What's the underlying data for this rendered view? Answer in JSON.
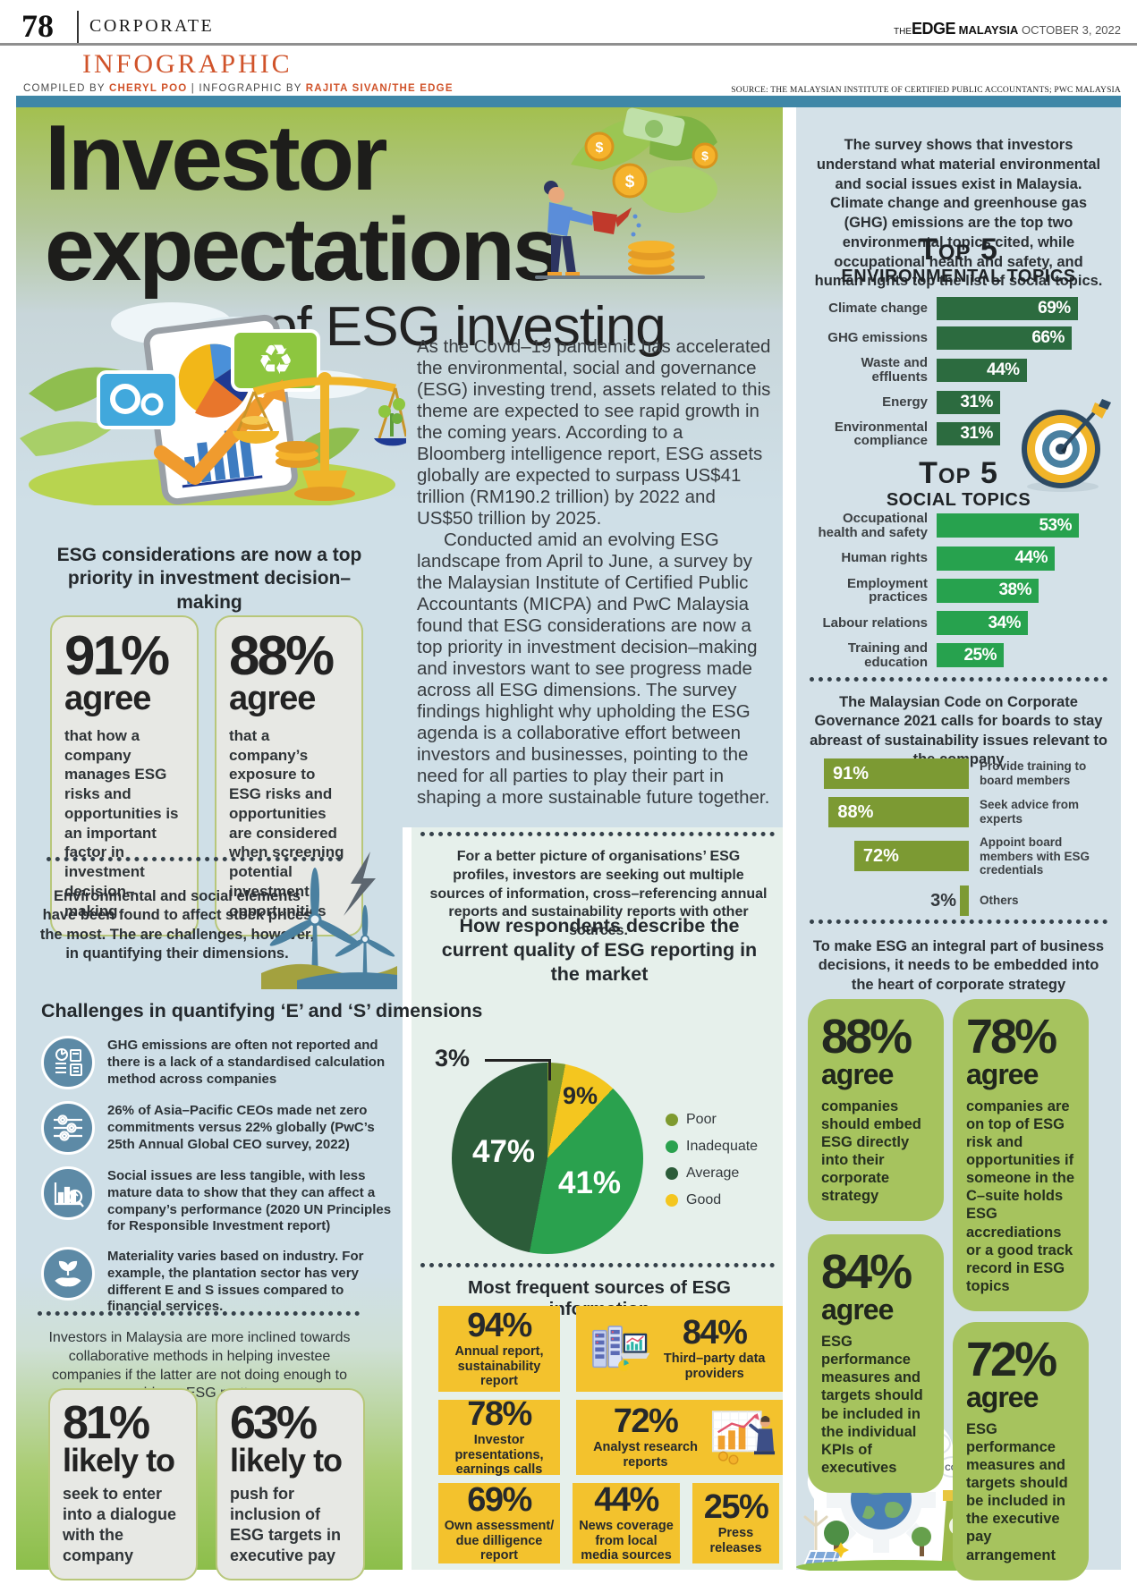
{
  "header": {
    "page_number": "78",
    "section": "CORPORATE",
    "brand": {
      "the": "THE",
      "edge": "EDGE",
      "malaysia": "MALAYSIA",
      "date": "OCTOBER 3, 2022"
    },
    "kicker": "INFOGRAPHIC",
    "byline": {
      "compiled_label": "COMPILED BY ",
      "compiled_name": "CHERYL POO",
      "divider": " | ",
      "infographic_label": "INFOGRAPHIC BY ",
      "infographic_name": "RAJITA SIVAN/THE EDGE"
    },
    "source": "SOURCE: THE MALAYSIAN INSTITUTE OF CERTIFIED PUBLIC ACCOUNTANTS; PWC MALAYSIA"
  },
  "hero": {
    "line1": "Investor",
    "line2": "expectations",
    "line3": "of ESG investing"
  },
  "left": {
    "priority_heading": "ESG considerations are now a top priority in investment decision–making",
    "stat1": {
      "value": "91%",
      "word": "agree",
      "desc": "that how a company manages ESG risks and opportunities is an important factor in investment decision–making"
    },
    "stat2": {
      "value": "88%",
      "word": "agree",
      "desc": "that a company’s exposure to ESG risks and opportunities are considered when screening potential investment opportunities"
    },
    "env_note": "Environmental and social elements have been found to affect stock prices the most. The are challenges, however, in quantifying their dimensions.",
    "challenges_heading": "Challenges in quantifying ‘E’ and ‘S’ dimensions",
    "challenges": [
      {
        "icon": "report-pie-calculator-icon",
        "text": "GHG emissions are often not reported and there is a lack of a standardised calculation method across companies"
      },
      {
        "icon": "settings-gears-icon",
        "text": "26% of Asia–Pacific CEOs made net zero commitments versus 22% globally (PwC’s 25th Annual Global CEO survey, 2022)"
      },
      {
        "icon": "chart-magnifier-icon",
        "text": "Social issues are less tangible, with less mature data to show that they can affect a company’s performance (2020 UN Principles for Responsible Investment report)"
      },
      {
        "icon": "hand-plant-icon",
        "text": "Materiality varies based on industry. For example, the plantation sector has very different E and S issues compared to financial services."
      }
    ],
    "collab_note": "Investors in Malaysia are more inclined towards collaborative methods in helping investee companies if the latter are not doing enough to address ESG matters",
    "likely1": {
      "value": "81%",
      "word": "likely to",
      "desc": "seek to enter into a dialogue with the company"
    },
    "likely2": {
      "value": "63%",
      "word": "likely to",
      "desc": "push for inclusion of ESG targets in executive pay"
    }
  },
  "middle": {
    "body_par1": "As the Covid–19 pandemic has accelerated the environmental, social and governance (ESG) investing trend, assets related to this theme are expected to see rapid growth in the coming years. According to a Bloomberg intelligence report, ESG assets globally are expected to surpass US$41 trillion (RM190.2 trillion) by 2022 and US$50 trillion by 2025.",
    "body_par2": "Conducted amid an evolving ESG landscape from April to June, a survey by the Malaysian Institute of Certified Public Accountants (MICPA) and PwC Malaysia found that ESG considerations are now a top priority in investment decision–making and investors want to see progress made across all ESG dimensions. The survey findings highlight why upholding the ESG agenda is a collaborative effort between investors and businesses, pointing to the need for all parties to play their part in shaping a more sustainable future together.",
    "sources_intro": "For a better picture of organisations’ ESG profiles, investors are seeking out multiple sources of information, cross–referencing annual reports and sustainability reports with other sources.",
    "pie_title": "How respondents describe the current quality of ESG reporting in the market",
    "sources_heading": "Most frequent sources of ESG information",
    "sources": [
      {
        "value": "94%",
        "label": "Annual report, sustainability report"
      },
      {
        "value": "84%",
        "label": "Third–party data providers"
      },
      {
        "value": "78%",
        "label": "Investor presentations, earnings calls"
      },
      {
        "value": "72%",
        "label": "Analyst research reports"
      },
      {
        "value": "69%",
        "label": "Own assessment/ due dilligence report"
      },
      {
        "value": "44%",
        "label": "News coverage from local media sources"
      },
      {
        "value": "25%",
        "label": "Press releases"
      }
    ]
  },
  "right": {
    "intro": "The survey shows that investors understand what material environmental and social issues exist in Malaysia. Climate change and greenhouse gas (GHG) emissions are the top two environmental topics cited, while occupational health and safety, and human rights top the list of social topics.",
    "top5": "Top 5",
    "env_heading": "ENVIRONMENTAL TOPICS",
    "social_heading": "SOCIAL TOPICS",
    "mccg_intro": "The Malaysian Code on Corporate Governance 2021 calls for boards to stay abreast of sustainability issues relevant to the company",
    "strategy_intro": "To make ESG an integral part of business decisions, it needs to be embedded into the heart of corporate strategy",
    "agree_boxes": [
      {
        "value": "88%",
        "word": "agree",
        "desc": "companies should embed ESG directly into their corporate strategy"
      },
      {
        "value": "78%",
        "word": "agree",
        "desc": "companies are on top of ESG risk and opportunities if someone in the C–suite holds ESG accrediations or a good track record in ESG topics"
      },
      {
        "value": "84%",
        "word": "agree",
        "desc": "ESG performance measures and targets should be included in the individual KPIs of executives"
      },
      {
        "value": "72%",
        "word": "agree",
        "desc": "ESG performance measures and targets should be included in the executive pay arrangement"
      }
    ]
  },
  "icons": {
    "hero_right": "money-plant-watering-illustration",
    "hero_left": "tablet-charts-balance-scale-illustration",
    "left_mid": "wind-turbines-illustration",
    "right_top": "dartboard-icon",
    "card_b": "servers-laptop-illustration",
    "card_d": "analyst-screen-illustration",
    "right_bottom": "eco-gear-earth-illustration"
  },
  "colors": {
    "teal_strip": "#3f87a7",
    "hero_green": "#a3c04f",
    "light_blue_panel": "#cfdfe7",
    "right_panel_blue": "#d4e1e8",
    "mint_panel": "#e6f0eb",
    "bottom_green": "#8cbe4a",
    "env_bar_green": "#2c6b3f",
    "social_bar_green": "#27a24e",
    "mccg_olive": "#7c9a33",
    "agree_box_green": "#a6c35e",
    "card_yellow": "#f3c22d",
    "stat_box_gray": "#e7e8e4",
    "stat_box_border": "#b8c77a",
    "accent_orange": "#d0532a"
  },
  "chart_data": [
    {
      "type": "bar",
      "title": "Top 5 Environmental Topics",
      "orientation": "horizontal",
      "categories": [
        "Climate change",
        "GHG emissions",
        "Waste and effluents",
        "Energy",
        "Environmental compliance"
      ],
      "values": [
        69,
        66,
        44,
        31,
        31
      ],
      "unit": "%",
      "xlim": [
        0,
        70
      ],
      "bar_color": "#2c6b3f"
    },
    {
      "type": "bar",
      "title": "Top 5 Social Topics",
      "orientation": "horizontal",
      "categories": [
        "Occupational health and safety",
        "Human rights",
        "Employment practices",
        "Labour relations",
        "Training and education"
      ],
      "values": [
        53,
        44,
        38,
        34,
        25
      ],
      "unit": "%",
      "xlim": [
        0,
        55
      ],
      "bar_color": "#27a24e"
    },
    {
      "type": "bar",
      "title": "The Malaysian Code on Corporate Governance 2021 calls for boards to stay abreast of sustainability issues relevant to the company",
      "orientation": "horizontal",
      "categories": [
        "Provide training to board members",
        "Seek advice from experts",
        "Appoint board members with ESG credentials",
        "Others"
      ],
      "values": [
        91,
        88,
        72,
        3
      ],
      "unit": "%",
      "xlim": [
        0,
        100
      ],
      "bar_color": "#7c9a33"
    },
    {
      "type": "pie",
      "title": "How respondents describe the current quality of ESG reporting in the market",
      "start_angle_deg": 0,
      "clockwise": true,
      "slices": [
        {
          "label": "Poor",
          "value": 3,
          "color": "#7e9a2f"
        },
        {
          "label": "Good",
          "value": 9,
          "color": "#f4c61f"
        },
        {
          "label": "Inadequate",
          "value": 41,
          "color": "#2aa14e"
        },
        {
          "label": "Average",
          "value": 47,
          "color": "#2c5c39"
        }
      ],
      "legend": [
        {
          "label": "Poor",
          "color": "#7e9a2f"
        },
        {
          "label": "Inadequate",
          "color": "#2aa14e"
        },
        {
          "label": "Average",
          "color": "#2c5c39"
        },
        {
          "label": "Good",
          "color": "#f4c61f"
        }
      ],
      "legend_position": "right"
    }
  ]
}
